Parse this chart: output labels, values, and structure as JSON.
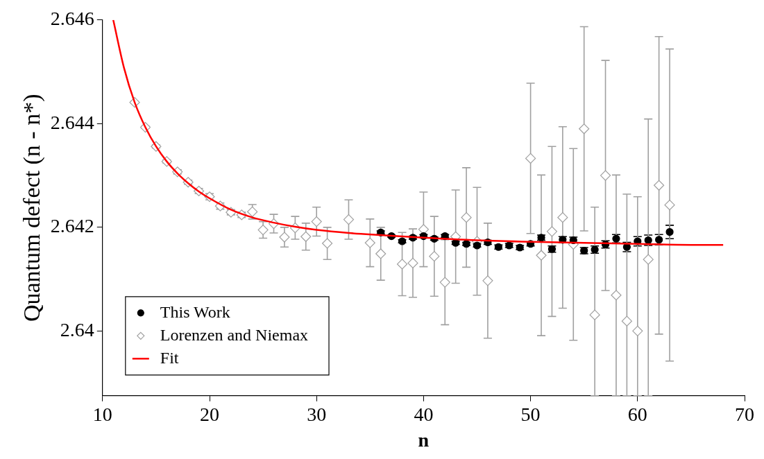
{
  "chart_data": {
    "type": "scatter",
    "xlabel": "n",
    "ylabel": "Quantum defect (n - n*)",
    "xlim": [
      10,
      70
    ],
    "xticks": [
      10,
      20,
      30,
      40,
      50,
      60,
      70
    ],
    "ylim": [
      2.63875,
      2.646
    ],
    "yticks": [
      2.64,
      2.642,
      2.644,
      2.646
    ],
    "grid": false,
    "legend": "bottom left",
    "series": [
      {
        "name": "This Work",
        "color": "#000000",
        "marker": "circle",
        "x": [
          36,
          37,
          38,
          39,
          40,
          41,
          42,
          43,
          44,
          45,
          46,
          47,
          48,
          49,
          50,
          51,
          52,
          53,
          54,
          55,
          56,
          57,
          58,
          59,
          60,
          61,
          62,
          63
        ],
        "values": [
          2.6419,
          2.64183,
          2.64173,
          2.6418,
          2.64183,
          2.64178,
          2.64183,
          2.6417,
          2.64168,
          2.64165,
          2.64171,
          2.64162,
          2.64165,
          2.64161,
          2.64168,
          2.6418,
          2.64158,
          2.64176,
          2.64175,
          2.64155,
          2.64157,
          2.64167,
          2.64178,
          2.64162,
          2.64173,
          2.64175,
          2.64176,
          2.64191
        ],
        "errors": [
          3e-05,
          2e-05,
          3e-05,
          3e-05,
          3e-05,
          3e-05,
          3e-05,
          3e-05,
          3e-05,
          3e-05,
          4e-05,
          4e-05,
          4e-05,
          4e-05,
          4e-05,
          5e-05,
          6e-05,
          6e-05,
          6e-05,
          6e-05,
          7e-05,
          7e-05,
          8e-05,
          9e-05,
          9e-05,
          0.0001,
          0.0001,
          0.00013
        ]
      },
      {
        "name": "Lorenzen and Niemax",
        "color": "#a0a0a0",
        "marker": "diamond",
        "x": [
          13,
          14,
          15,
          16,
          17,
          18,
          19,
          20,
          21,
          22,
          23,
          24,
          25,
          26,
          27,
          28,
          29,
          30,
          31,
          33,
          35,
          36,
          38,
          39,
          40,
          41,
          42,
          43,
          44,
          45,
          46,
          50,
          51,
          52,
          53,
          54,
          55,
          56,
          57,
          58,
          59,
          60,
          61,
          62,
          63
        ],
        "values": [
          2.64441,
          2.64393,
          2.64356,
          2.64327,
          2.64307,
          2.64287,
          2.6427,
          2.64259,
          2.64241,
          2.64229,
          2.64224,
          2.6423,
          2.64195,
          2.64207,
          2.64181,
          2.64199,
          2.64182,
          2.64211,
          2.64169,
          2.64215,
          2.6417,
          2.64149,
          2.64129,
          2.64131,
          2.64196,
          2.64144,
          2.64094,
          2.64182,
          2.64219,
          2.64173,
          2.64097,
          2.64333,
          2.64146,
          2.64192,
          2.64219,
          2.64167,
          2.6439,
          2.64031,
          2.643,
          2.64069,
          2.64019,
          2.64,
          2.64138,
          2.64281,
          2.64243
        ],
        "errors": [
          2e-05,
          2e-05,
          3e-05,
          3e-05,
          4e-05,
          4e-05,
          5e-05,
          6e-05,
          6e-05,
          5e-05,
          5e-05,
          0.00014,
          0.00016,
          0.00018,
          0.00019,
          0.00022,
          0.00026,
          0.00028,
          0.00031,
          0.00038,
          0.00046,
          0.00051,
          0.00061,
          0.00066,
          0.00072,
          0.00077,
          0.00082,
          0.0009,
          0.00096,
          0.00104,
          0.00111,
          0.00145,
          0.00155,
          0.00164,
          0.00175,
          0.00185,
          0.00197,
          [
            2.63875,
            2.64239
          ],
          0.00222,
          [
            2.63875,
            2.64301
          ],
          [
            2.63875,
            2.64264
          ],
          [
            2.63875,
            2.64259
          ],
          [
            2.63875,
            2.64409
          ],
          0.00287,
          0.00301
        ]
      },
      {
        "name": "Fit",
        "type": "line",
        "color": "#ff0000",
        "marker": "none",
        "line_style": "solid",
        "x": [
          11,
          12,
          13,
          14,
          15,
          16,
          17,
          18,
          19,
          20,
          22,
          24,
          26,
          28,
          30,
          33,
          36,
          40,
          45,
          50,
          55,
          60,
          65,
          68
        ],
        "values": [
          2.646,
          2.64508,
          2.64441,
          2.64393,
          2.64356,
          2.64327,
          2.64304,
          2.64285,
          2.64269,
          2.64256,
          2.64234,
          2.64219,
          2.64209,
          2.64201,
          2.64195,
          2.64189,
          2.64185,
          2.6418,
          2.64175,
          2.64172,
          2.6417,
          2.64168,
          2.64166,
          2.64166
        ]
      }
    ]
  }
}
